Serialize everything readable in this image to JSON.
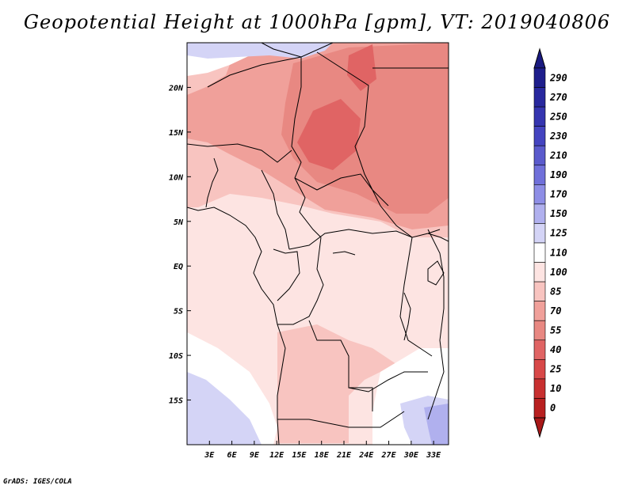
{
  "title": "Geopotential Height at 1000hPa [gpm], VT: 2019040806",
  "credit": "GrADS: IGES/COLA",
  "map": {
    "lon_range": [
      0,
      35
    ],
    "lat_range": [
      -20,
      25
    ],
    "lon_ticks": [
      {
        "value": 3,
        "label": "3E"
      },
      {
        "value": 6,
        "label": "6E"
      },
      {
        "value": 9,
        "label": "9E"
      },
      {
        "value": 12,
        "label": "12E"
      },
      {
        "value": 15,
        "label": "15E"
      },
      {
        "value": 18,
        "label": "18E"
      },
      {
        "value": 21,
        "label": "21E"
      },
      {
        "value": 24,
        "label": "24E"
      },
      {
        "value": 27,
        "label": "27E"
      },
      {
        "value": 30,
        "label": "30E"
      },
      {
        "value": 33,
        "label": "33E"
      }
    ],
    "lat_ticks": [
      {
        "value": 20,
        "label": "20N"
      },
      {
        "value": 15,
        "label": "15N"
      },
      {
        "value": 10,
        "label": "10N"
      },
      {
        "value": 5,
        "label": "5N"
      },
      {
        "value": 0,
        "label": "EQ"
      },
      {
        "value": -5,
        "label": "5S"
      },
      {
        "value": -10,
        "label": "10S"
      },
      {
        "value": -15,
        "label": "15S"
      }
    ]
  },
  "colorbar": {
    "levels": [
      {
        "label": "290",
        "color": "#1e1e8c"
      },
      {
        "label": "270",
        "color": "#28289e"
      },
      {
        "label": "250",
        "color": "#3535b0"
      },
      {
        "label": "230",
        "color": "#4444c0"
      },
      {
        "label": "210",
        "color": "#5a5acc"
      },
      {
        "label": "190",
        "color": "#7070da"
      },
      {
        "label": "170",
        "color": "#8e8ee6"
      },
      {
        "label": "150",
        "color": "#b0b0ee"
      },
      {
        "label": "125",
        "color": "#d4d4f6"
      },
      {
        "label": "110",
        "color": "#ffffff"
      },
      {
        "label": "100",
        "color": "#fde4e2"
      },
      {
        "label": "85",
        "color": "#f8c4c0"
      },
      {
        "label": "70",
        "color": "#f0a09a"
      },
      {
        "label": "55",
        "color": "#e88882"
      },
      {
        "label": "40",
        "color": "#e06464"
      },
      {
        "label": "25",
        "color": "#d84848"
      },
      {
        "label": "10",
        "color": "#c83030"
      },
      {
        "label": "0",
        "color": "#b82020"
      }
    ],
    "top_color": "#1a1a80",
    "bottom_color": "#a81818"
  }
}
